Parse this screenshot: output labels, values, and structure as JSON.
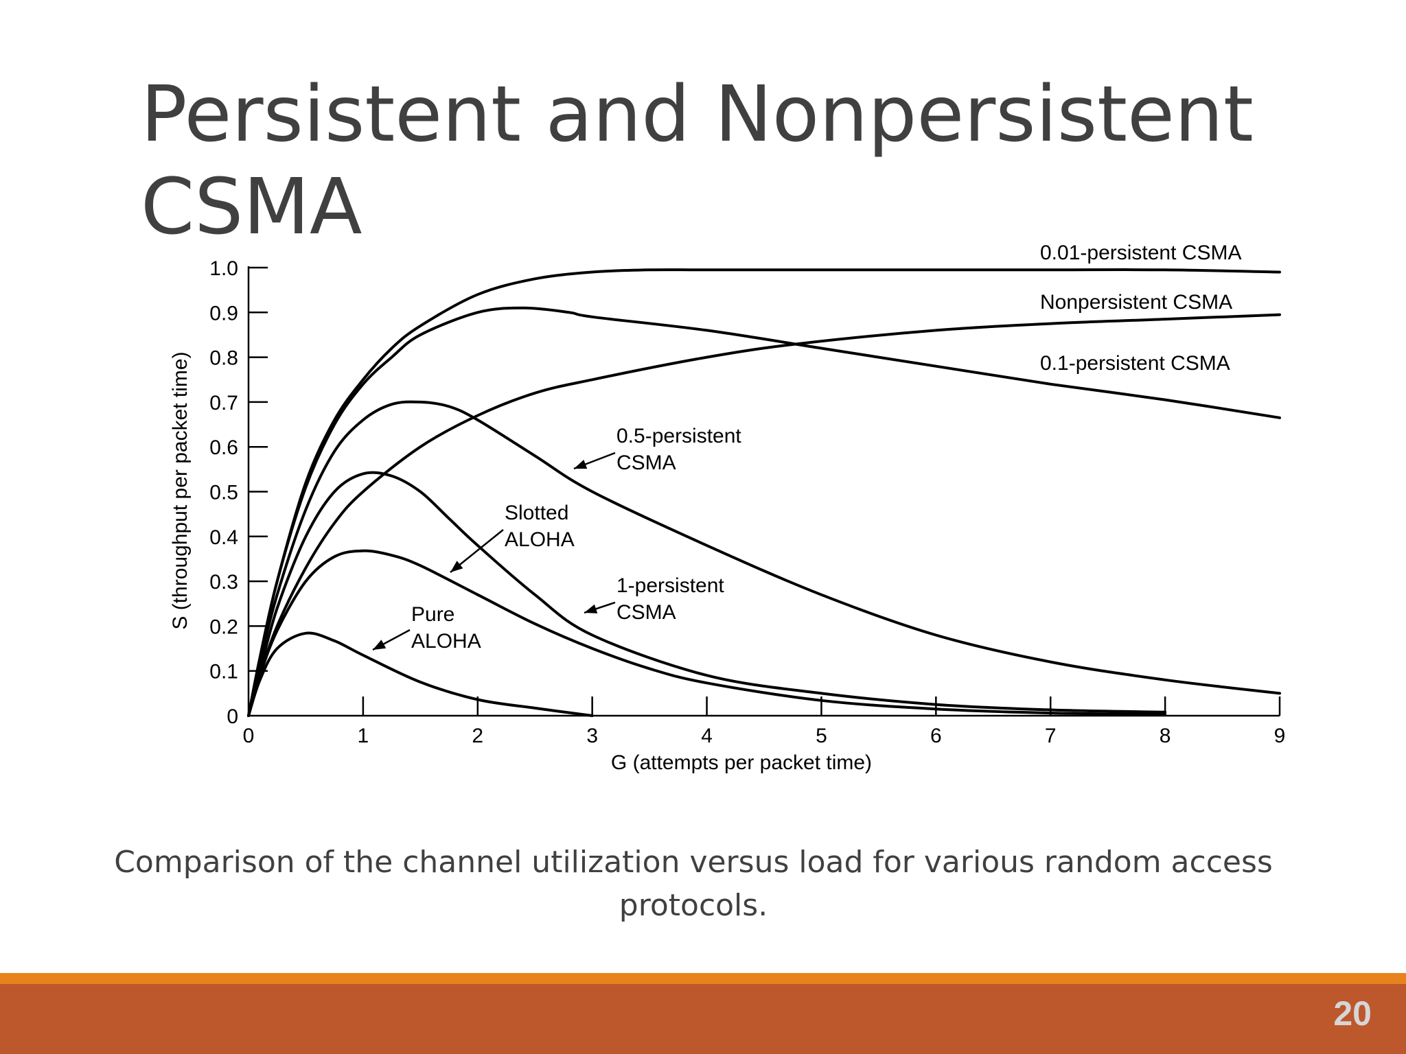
{
  "slide": {
    "title_line1": "Persistent and Nonpersistent",
    "title_line2": "CSMA",
    "caption": "Comparison of the channel utilization versus load for various random access protocols.",
    "page_number": "20"
  },
  "colors": {
    "title_text": "#404040",
    "footer_stripe": "#e8821c",
    "footer_bar": "#bd582c",
    "page_number_text": "#d6d6d6"
  },
  "chart_data": {
    "type": "line",
    "title": "",
    "xlabel": "G (attempts per packet time)",
    "ylabel": "S (throughput per packet time)",
    "xlim": [
      0,
      9
    ],
    "ylim": [
      0,
      1.0
    ],
    "xticks": [
      0,
      1,
      2,
      3,
      4,
      5,
      6,
      7,
      8,
      9
    ],
    "yticks": [
      0,
      0.1,
      0.2,
      0.3,
      0.4,
      0.5,
      0.6,
      0.7,
      0.8,
      0.9,
      1.0
    ],
    "ytick_labels": [
      "0",
      "0.1",
      "0.2",
      "0.3",
      "0.4",
      "0.5",
      "0.6",
      "0.7",
      "0.8",
      "0.9",
      "1.0"
    ],
    "grid": false,
    "series": [
      {
        "name": "0.01-persistent CSMA",
        "label_lines": [
          "0.01-persistent CSMA"
        ],
        "x": [
          0,
          0.1,
          0.25,
          0.5,
          0.75,
          1.0,
          1.25,
          1.5,
          2.0,
          2.5,
          3.0,
          3.5,
          4.0,
          5.0,
          6.0,
          7.0,
          8.0,
          9.0
        ],
        "y": [
          0,
          0.13,
          0.3,
          0.52,
          0.66,
          0.75,
          0.82,
          0.87,
          0.94,
          0.975,
          0.99,
          0.995,
          0.995,
          0.995,
          0.995,
          0.995,
          0.995,
          0.99
        ]
      },
      {
        "name": "Nonpersistent CSMA",
        "label_lines": [
          "Nonpersistent CSMA"
        ],
        "x": [
          0,
          0.1,
          0.25,
          0.5,
          0.75,
          1.0,
          1.5,
          2.0,
          2.5,
          3.0,
          4.0,
          4.8,
          6.0,
          7.0,
          8.0,
          9.0
        ],
        "y": [
          0,
          0.09,
          0.2,
          0.33,
          0.43,
          0.5,
          0.6,
          0.67,
          0.72,
          0.75,
          0.8,
          0.83,
          0.86,
          0.875,
          0.885,
          0.895
        ]
      },
      {
        "name": "0.1-persistent CSMA",
        "label_lines": [
          "0.1-persistent CSMA"
        ],
        "x": [
          0,
          0.1,
          0.25,
          0.5,
          0.75,
          1.0,
          1.25,
          1.5,
          2.0,
          2.4,
          2.8,
          3.0,
          4.0,
          5.0,
          6.0,
          7.0,
          8.0,
          9.0
        ],
        "y": [
          0,
          0.13,
          0.3,
          0.51,
          0.65,
          0.74,
          0.8,
          0.85,
          0.9,
          0.91,
          0.9,
          0.89,
          0.86,
          0.82,
          0.78,
          0.74,
          0.705,
          0.665
        ]
      },
      {
        "name": "0.5-persistent CSMA",
        "label_lines": [
          "0.5-persistent",
          "CSMA"
        ],
        "x": [
          0,
          0.1,
          0.25,
          0.5,
          0.75,
          1.0,
          1.25,
          1.5,
          1.75,
          2.0,
          2.5,
          3.0,
          4.0,
          5.0,
          6.0,
          7.0,
          8.0,
          9.0
        ],
        "y": [
          0,
          0.12,
          0.27,
          0.46,
          0.59,
          0.66,
          0.695,
          0.7,
          0.69,
          0.66,
          0.58,
          0.5,
          0.38,
          0.27,
          0.18,
          0.12,
          0.08,
          0.05
        ]
      },
      {
        "name": "1-persistent CSMA",
        "label_lines": [
          "1-persistent",
          "CSMA"
        ],
        "x": [
          0,
          0.1,
          0.25,
          0.5,
          0.75,
          1.0,
          1.25,
          1.5,
          1.75,
          2.0,
          2.5,
          3.0,
          4.0,
          5.0,
          6.0,
          7.0,
          8.0
        ],
        "y": [
          0,
          0.1,
          0.24,
          0.4,
          0.5,
          0.54,
          0.535,
          0.5,
          0.44,
          0.38,
          0.27,
          0.18,
          0.09,
          0.05,
          0.025,
          0.013,
          0.008
        ]
      },
      {
        "name": "Slotted ALOHA",
        "label_lines": [
          "Slotted",
          "ALOHA"
        ],
        "x": [
          0,
          0.1,
          0.25,
          0.5,
          0.75,
          1.0,
          1.25,
          1.5,
          2.0,
          2.5,
          3.0,
          3.5,
          4.0,
          5.0,
          6.0,
          7.0,
          8.0
        ],
        "y": [
          0,
          0.09,
          0.19,
          0.3,
          0.355,
          0.368,
          0.358,
          0.335,
          0.27,
          0.205,
          0.15,
          0.105,
          0.073,
          0.034,
          0.015,
          0.006,
          0.003
        ]
      },
      {
        "name": "Pure ALOHA",
        "label_lines": [
          "Pure",
          "ALOHA"
        ],
        "x": [
          0,
          0.1,
          0.25,
          0.5,
          0.75,
          1.0,
          1.5,
          2.0,
          2.5,
          3.0
        ],
        "y": [
          0,
          0.08,
          0.15,
          0.184,
          0.167,
          0.135,
          0.075,
          0.036,
          0.017,
          0.0
        ]
      }
    ]
  }
}
